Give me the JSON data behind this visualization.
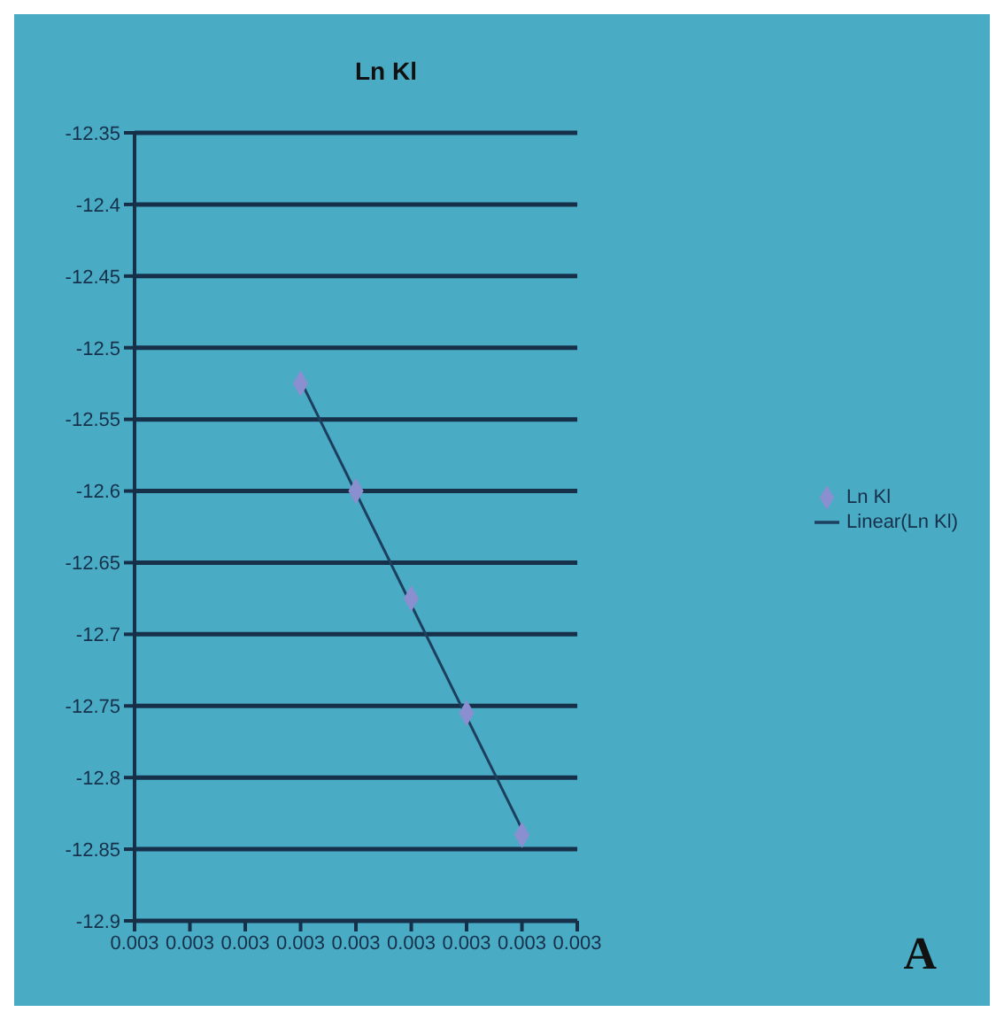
{
  "chart_data": {
    "type": "scatter",
    "title": "Ln Kl",
    "categories": [
      "0.003",
      "0.003",
      "0.003",
      "0.003",
      "0.003",
      "0.003",
      "0.003",
      "0.003",
      "0.003"
    ],
    "series": [
      {
        "name": "Ln Kl",
        "color": "#8a8fd0",
        "marker": "diamond",
        "values": [
          null,
          null,
          null,
          -12.525,
          -12.6,
          -12.675,
          -12.755,
          -12.84,
          null
        ]
      },
      {
        "name": "Linear(Ln Kl)",
        "type": "line",
        "color": "#1c3f5e",
        "line_style": "solid",
        "marker": "none",
        "values": [
          null,
          null,
          null,
          -12.523,
          null,
          null,
          null,
          -12.836,
          null
        ]
      }
    ],
    "ylim": [
      -12.9,
      -12.35
    ],
    "yticks": [
      -12.9,
      -12.85,
      -12.8,
      -12.75,
      -12.7,
      -12.65,
      -12.6,
      -12.55,
      -12.5,
      -12.45,
      -12.4,
      -12.35
    ],
    "grid": "y",
    "legend": "right",
    "annotations": [
      "A"
    ]
  }
}
